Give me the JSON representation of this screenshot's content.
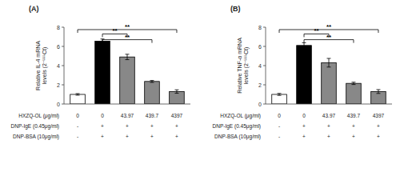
{
  "chart_data": [
    {
      "type": "bar",
      "title": "(A)",
      "ylabel": "Relative IL-4 mRNA\nlevels (2⁻ᴸᴸᴸCt)",
      "values": [
        1.0,
        6.55,
        4.9,
        2.35,
        1.3
      ],
      "errors": [
        0.08,
        0.22,
        0.28,
        0.1,
        0.18
      ],
      "colors": [
        "white",
        "black",
        "#888888",
        "#888888",
        "#888888"
      ],
      "ylim": [
        0,
        8
      ],
      "yticks": [
        0,
        2,
        4,
        6,
        8
      ],
      "annotations": [
        {
          "x1": 1,
          "x2": 2,
          "y": 7.3,
          "label": "**"
        },
        {
          "x1": 1,
          "x2": 3,
          "y": 6.7,
          "label": "**"
        },
        {
          "x1": 0,
          "x2": 4,
          "y": 7.75,
          "label": "**"
        }
      ],
      "table": {
        "row_labels": [
          "HXZQ-OL (μg/ml)",
          "DNP-IgE (0.45μg/ml)",
          "DNP-BSA (10μg/ml)"
        ],
        "rows": [
          [
            "0",
            "0",
            "43.97",
            "439.7",
            "4397"
          ],
          [
            "-",
            "+",
            "+",
            "+",
            "+"
          ],
          [
            "-",
            "+",
            "+",
            "+",
            "+"
          ]
        ]
      }
    },
    {
      "type": "bar",
      "title": "(B)",
      "ylabel": "Relative TNF-α mRNA\nlevels (2⁻ᴸᴸᴸCt)",
      "values": [
        1.0,
        6.1,
        4.3,
        2.15,
        1.3
      ],
      "errors": [
        0.1,
        0.28,
        0.45,
        0.12,
        0.2
      ],
      "colors": [
        "white",
        "black",
        "#888888",
        "#888888",
        "#888888"
      ],
      "ylim": [
        0,
        8
      ],
      "yticks": [
        0,
        2,
        4,
        6,
        8
      ],
      "annotations": [
        {
          "x1": 1,
          "x2": 2,
          "y": 7.3,
          "label": "**"
        },
        {
          "x1": 1,
          "x2": 3,
          "y": 6.7,
          "label": "**"
        },
        {
          "x1": 0,
          "x2": 4,
          "y": 7.75,
          "label": "**"
        }
      ],
      "table": {
        "row_labels": [
          "HXZQ-OL (μg/ml)",
          "DNP-IgE (0.45μg/ml)",
          "DNP-BSA (10μg/ml)"
        ],
        "rows": [
          [
            "0",
            "0",
            "43.97",
            "439.7",
            "4397"
          ],
          [
            "-",
            "+",
            "+",
            "+",
            "+"
          ],
          [
            "-",
            "+",
            "+",
            "+",
            "+"
          ]
        ]
      }
    }
  ]
}
